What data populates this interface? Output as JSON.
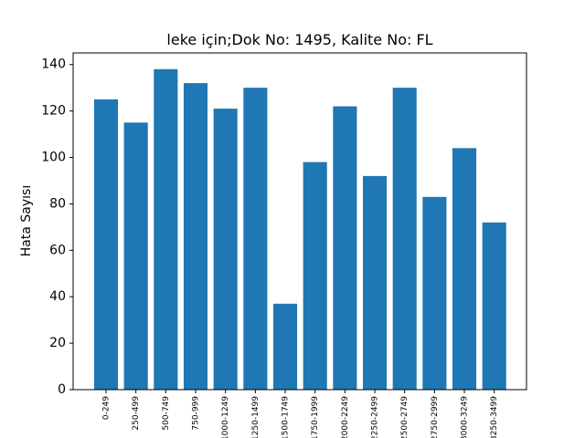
{
  "chart_data": {
    "type": "bar",
    "title": "leke için;Dok No: 1495, Kalite No: FL",
    "xlabel": "",
    "ylabel": "Hata Sayısı",
    "ylim": [
      0,
      145
    ],
    "yticks": [
      "0",
      "20",
      "40",
      "60",
      "80",
      "100",
      "120",
      "140"
    ],
    "categories": [
      "0-249",
      "250-499",
      "500-749",
      "750-999",
      "1000-1249",
      "1250-1499",
      "1500-1749",
      "1750-1999",
      "2000-2249",
      "2250-2499",
      "2500-2749",
      "2750-2999",
      "3000-3249",
      "3250-3499"
    ],
    "values": [
      125,
      115,
      138,
      132,
      121,
      130,
      37,
      98,
      122,
      92,
      130,
      83,
      104,
      72
    ],
    "bar_color": "#1f77b4",
    "grid": false
  }
}
